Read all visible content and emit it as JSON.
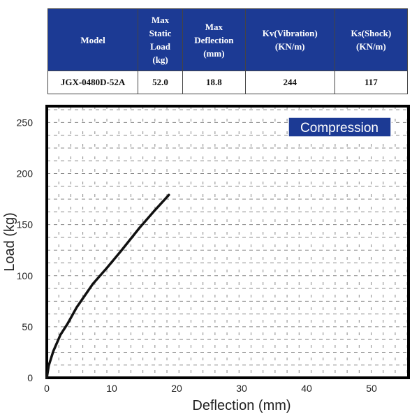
{
  "table": {
    "headers": [
      "Model",
      "Max Static Load (kg)",
      "Max Deflection (mm)",
      "Kv(Vibration) (KN/m)",
      "Ks(Shock) (KN/m)"
    ],
    "header_lines": [
      [
        "Model"
      ],
      [
        "Max",
        "Static",
        "Load",
        "(kg)"
      ],
      [
        "Max",
        "Deflection",
        "(mm)"
      ],
      [
        "Kv(Vibration)",
        "(KN/m)"
      ],
      [
        "Ks(Shock)",
        "(KN/m)"
      ]
    ],
    "row": [
      "JGX-0480D-52A",
      "52.0",
      "18.8",
      "244",
      "117"
    ],
    "header_bg": "#1c3a94"
  },
  "chart_data": {
    "type": "line",
    "legend_label": "Compression",
    "xlabel": "Deflection (mm)",
    "ylabel": "Load (kg)",
    "xlim": [
      0,
      55.7
    ],
    "ylim": [
      0,
      266
    ],
    "xticks": [
      0,
      10,
      20,
      30,
      40,
      50
    ],
    "yticks": [
      0,
      50,
      100,
      150,
      200,
      250
    ],
    "grid": true,
    "legend_placement": "top-right",
    "series": [
      {
        "x": [
          0,
          0.3,
          1.0,
          2.1,
          3.2,
          4.6,
          7.1,
          9.3,
          11.4,
          14.3,
          16.5,
          18.8
        ],
        "y": [
          0,
          12,
          26,
          42,
          53,
          69,
          92,
          108,
          124,
          147,
          163,
          179
        ],
        "color": "#111111"
      }
    ]
  }
}
